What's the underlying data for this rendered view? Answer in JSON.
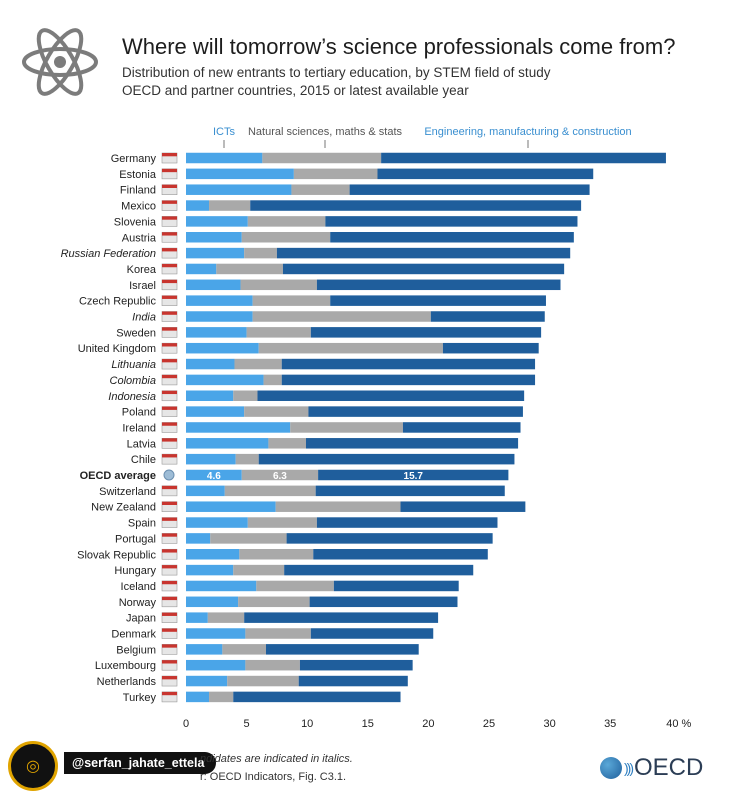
{
  "header": {
    "title": "Where will tomorrow’s science professionals come from?",
    "subtitle_line1": "Distribution of new entrants to tertiary education, by STEM field of study",
    "subtitle_line2": "OECD and partner countries, 2015 or latest available year"
  },
  "icons": {
    "atom": "atom-icon",
    "badge": "news-badge-icon",
    "oecd_logo": "oecd-logo-icon"
  },
  "colors": {
    "ict": "#4aa5e8",
    "natural": "#a9a9a9",
    "engineering": "#1f5e9c"
  },
  "chart_data": {
    "type": "bar",
    "orientation": "horizontal",
    "stacked": true,
    "categories": [
      "Germany",
      "Estonia",
      "Finland",
      "Mexico",
      "Slovenia",
      "Austria",
      "Russian Federation",
      "Korea",
      "Israel",
      "Czech Republic",
      "India",
      "Sweden",
      "United Kingdom",
      "Lithuania",
      "Colombia",
      "Indonesia",
      "Poland",
      "Ireland",
      "Latvia",
      "Chile",
      "OECD average",
      "Switzerland",
      "New Zealand",
      "Spain",
      "Portugal",
      "Slovak Republic",
      "Hungary",
      "Iceland",
      "Norway",
      "Japan",
      "Denmark",
      "Belgium",
      "Luxembourg",
      "Netherlands",
      "Turkey"
    ],
    "italic_categories": [
      "Russian Federation",
      "India",
      "Lithuania",
      "Colombia",
      "Indonesia"
    ],
    "highlight_category": "OECD average",
    "series": [
      {
        "name": "ICTs",
        "values": [
          6.3,
          8.9,
          8.7,
          1.9,
          5.1,
          4.6,
          4.8,
          2.5,
          4.5,
          5.5,
          5.5,
          5.0,
          6.0,
          4.0,
          6.4,
          3.9,
          4.8,
          8.6,
          6.8,
          4.1,
          4.6,
          3.2,
          7.4,
          5.1,
          2.0,
          4.4,
          3.9,
          5.8,
          4.3,
          1.8,
          4.9,
          3.0,
          4.9,
          3.4,
          1.9
        ]
      },
      {
        "name": "Natural sciences, maths & stats",
        "values": [
          9.8,
          6.9,
          4.8,
          3.4,
          6.4,
          7.3,
          2.7,
          5.5,
          6.3,
          6.4,
          14.7,
          5.3,
          15.2,
          3.9,
          1.5,
          2.0,
          5.3,
          9.3,
          3.1,
          1.9,
          6.3,
          7.5,
          10.3,
          5.7,
          6.3,
          6.1,
          4.2,
          6.4,
          5.9,
          3.0,
          5.4,
          3.6,
          4.5,
          5.9,
          2.0
        ]
      },
      {
        "name": "Engineering, manufacturing & construction",
        "values": [
          23.5,
          17.8,
          19.8,
          27.3,
          20.8,
          20.1,
          24.2,
          23.2,
          20.1,
          17.8,
          9.4,
          19.0,
          7.9,
          20.9,
          20.9,
          22.0,
          17.7,
          9.7,
          17.5,
          21.1,
          15.7,
          15.6,
          10.3,
          14.9,
          17.0,
          14.4,
          15.6,
          10.3,
          12.2,
          16.0,
          10.1,
          12.6,
          9.3,
          9.0,
          13.8
        ]
      }
    ],
    "bar_labels": [
      "4.6",
      "6.3",
      "15.7"
    ],
    "x_ticks": [
      "0",
      "5",
      "10",
      "15",
      "20",
      "25",
      "30",
      "35",
      "40 %"
    ],
    "xlim": [
      0,
      40
    ],
    "legend_placement": "top",
    "grid": false
  },
  "footer": {
    "note": "ndidates are indicated in italics.",
    "source": "r: OECD Indicators, Fig. C3.1.",
    "handle": "@serfan_jahate_ettela",
    "oecd_label": "OECD"
  }
}
